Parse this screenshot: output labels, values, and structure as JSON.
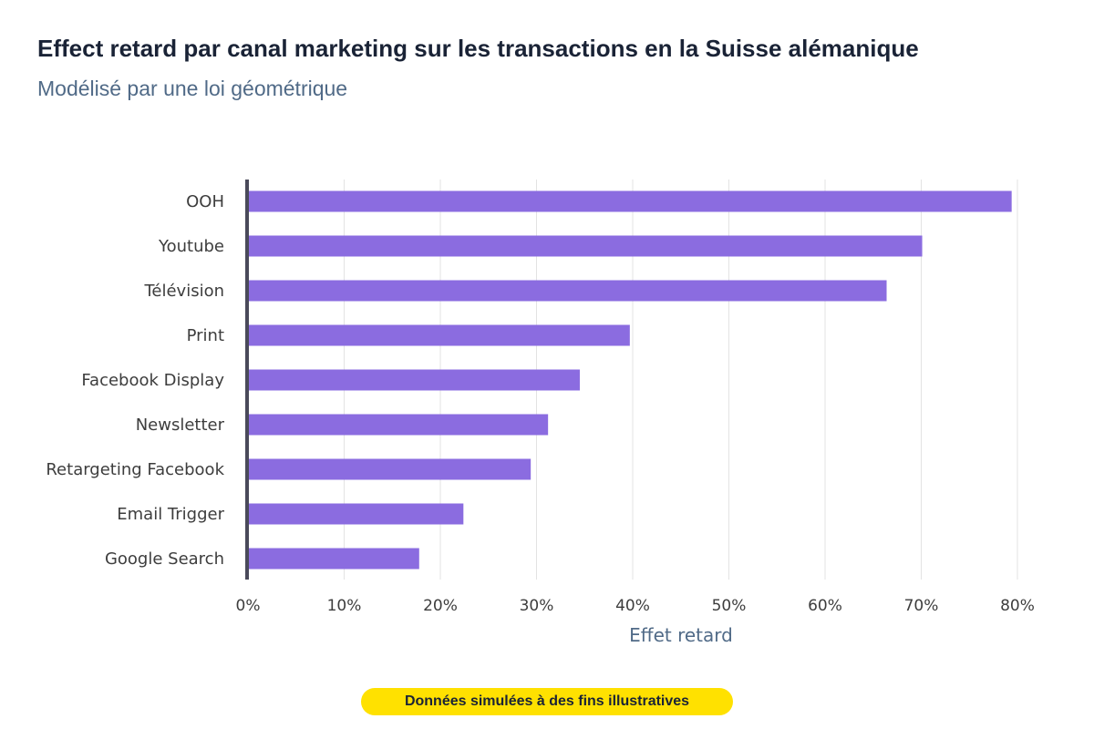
{
  "title": "Effect retard par canal marketing sur les transactions en la Suisse alémanique",
  "subtitle": "Modélisé par une loi géométrique",
  "footnote": {
    "text": "Données simulées à des fins illustratives",
    "background": "#ffe100"
  },
  "colors": {
    "bar": "#8b6ce0",
    "grid": "#e3e3e3",
    "axis": "#4a4a5a"
  },
  "chart_data": {
    "type": "bar",
    "orientation": "horizontal",
    "title": "Effect retard par canal marketing sur les transactions en la Suisse alémanique",
    "subtitle": "Modélisé par une loi géométrique",
    "xlabel": "Effet retard",
    "ylabel": "",
    "xlim": [
      0,
      80
    ],
    "x_ticks": [
      0,
      10,
      20,
      30,
      40,
      50,
      60,
      70,
      80
    ],
    "x_tick_suffix": "%",
    "grid": true,
    "categories": [
      "OOH",
      "Youtube",
      "Télévision",
      "Print",
      "Facebook Display",
      "Newsletter",
      "Retargeting Facebook",
      "Email Trigger",
      "Google Search"
    ],
    "values": [
      79.4,
      70.1,
      66.4,
      39.7,
      34.5,
      31.2,
      29.4,
      22.4,
      17.8
    ]
  }
}
